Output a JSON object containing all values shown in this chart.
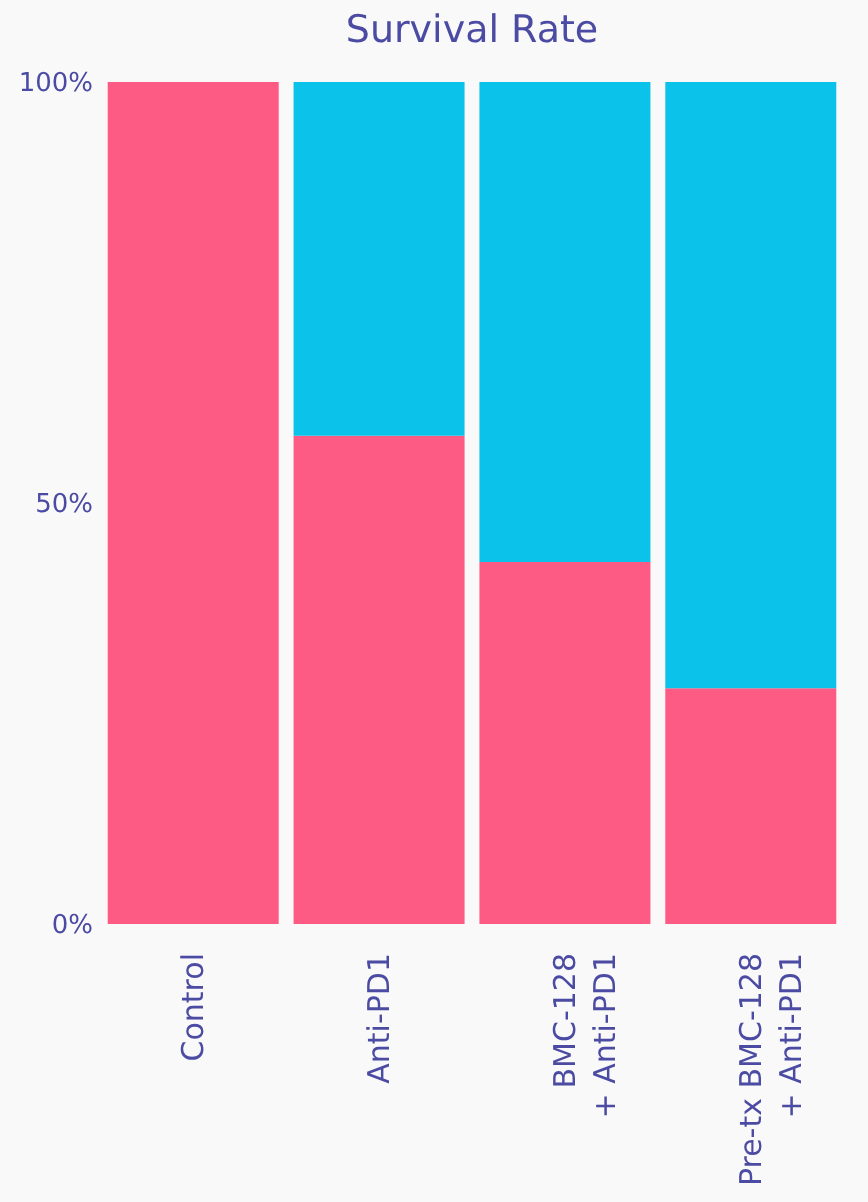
{
  "chart_data": {
    "type": "bar",
    "title": "Survival Rate",
    "stacked": true,
    "categories": [
      "Control",
      "Anti-PD1",
      "BMC-128\n+ Anti-PD1",
      "Pre-tx BMC-128\n+ Anti-PD1"
    ],
    "series": [
      {
        "color": "#fd5a84",
        "values": [
          100,
          58,
          43,
          28
        ]
      },
      {
        "color": "#0bc3ea",
        "values": [
          0,
          42,
          57,
          72
        ]
      }
    ],
    "ylim": [
      0,
      100
    ],
    "yticks": [
      {
        "value": 0,
        "label": "0%"
      },
      {
        "value": 50,
        "label": "50%"
      },
      {
        "value": 100,
        "label": "100%"
      }
    ],
    "grid": false,
    "legend": false
  }
}
